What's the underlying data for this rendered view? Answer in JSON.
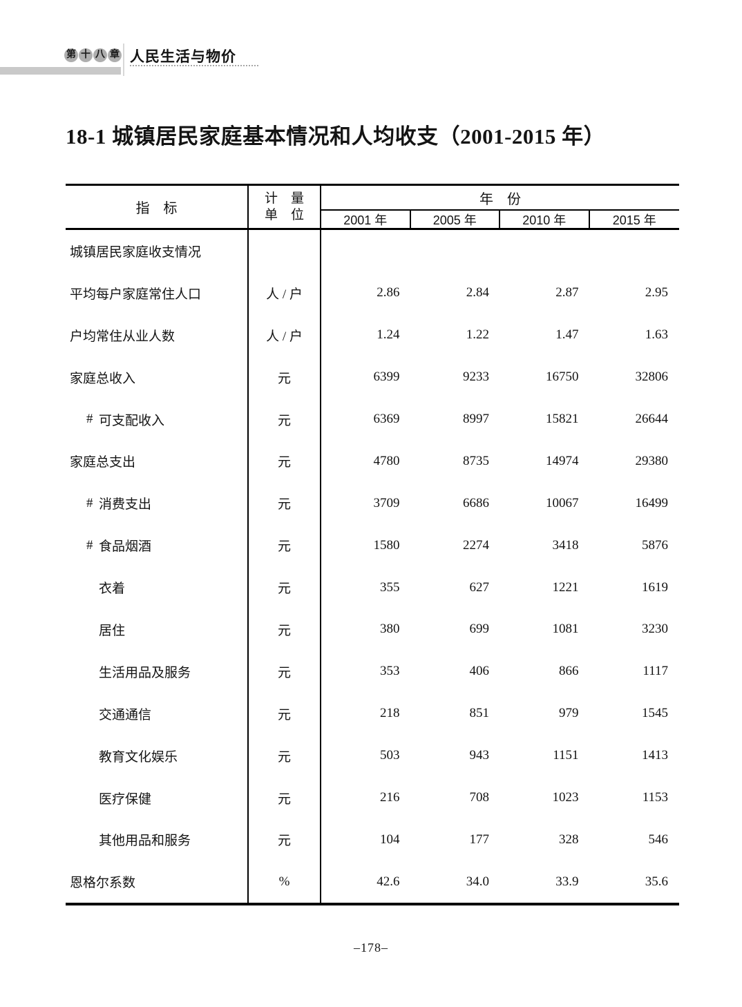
{
  "header": {
    "chapter_badge_chars": [
      "第",
      "十",
      "八",
      "章"
    ],
    "chapter_title": "人民生活与物价"
  },
  "title": "18-1  城镇居民家庭基本情况和人均收支（2001-2015 年）",
  "table": {
    "col_indicator": "指　标",
    "col_unit_line1": "计　量",
    "col_unit_line2": "单　位",
    "col_year_group": "年　份",
    "year_columns": [
      "2001 年",
      "2005 年",
      "2010 年",
      "2015 年"
    ],
    "rows": [
      {
        "hash": "",
        "label": "城镇居民家庭收支情况",
        "indent": 0,
        "unit": "",
        "values": [
          "",
          "",
          "",
          ""
        ]
      },
      {
        "hash": "",
        "label": "平均每户家庭常住人口",
        "indent": 0,
        "unit": "人 / 户",
        "values": [
          "2.86",
          "2.84",
          "2.87",
          "2.95"
        ]
      },
      {
        "hash": "",
        "label": "户均常住从业人数",
        "indent": 0,
        "unit": "人 / 户",
        "values": [
          "1.24",
          "1.22",
          "1.47",
          "1.63"
        ]
      },
      {
        "hash": "",
        "label": "家庭总收入",
        "indent": 0,
        "unit": "元",
        "values": [
          "6399",
          "9233",
          "16750",
          "32806"
        ]
      },
      {
        "hash": "#",
        "label": "可支配收入",
        "indent": 1,
        "unit": "元",
        "values": [
          "6369",
          "8997",
          "15821",
          "26644"
        ]
      },
      {
        "hash": "",
        "label": "家庭总支出",
        "indent": 0,
        "unit": "元",
        "values": [
          "4780",
          "8735",
          "14974",
          "29380"
        ]
      },
      {
        "hash": "#",
        "label": "消费支出",
        "indent": 1,
        "unit": "元",
        "values": [
          "3709",
          "6686",
          "10067",
          "16499"
        ]
      },
      {
        "hash": "#",
        "label": "食品烟酒",
        "indent": 1,
        "unit": "元",
        "values": [
          "1580",
          "2274",
          "3418",
          "5876"
        ]
      },
      {
        "hash": "",
        "label": "衣着",
        "indent": 2,
        "unit": "元",
        "values": [
          "355",
          "627",
          "1221",
          "1619"
        ]
      },
      {
        "hash": "",
        "label": "居住",
        "indent": 2,
        "unit": "元",
        "values": [
          "380",
          "699",
          "1081",
          "3230"
        ]
      },
      {
        "hash": "",
        "label": "生活用品及服务",
        "indent": 2,
        "unit": "元",
        "values": [
          "353",
          "406",
          "866",
          "1117"
        ]
      },
      {
        "hash": "",
        "label": "交通通信",
        "indent": 2,
        "unit": "元",
        "values": [
          "218",
          "851",
          "979",
          "1545"
        ]
      },
      {
        "hash": "",
        "label": "教育文化娱乐",
        "indent": 2,
        "unit": "元",
        "values": [
          "503",
          "943",
          "1151",
          "1413"
        ]
      },
      {
        "hash": "",
        "label": "医疗保健",
        "indent": 2,
        "unit": "元",
        "values": [
          "216",
          "708",
          "1023",
          "1153"
        ]
      },
      {
        "hash": "",
        "label": "其他用品和服务",
        "indent": 2,
        "unit": "元",
        "values": [
          "104",
          "177",
          "328",
          "546"
        ]
      },
      {
        "hash": "",
        "label": "恩格尔系数",
        "indent": 0,
        "unit": "%",
        "values": [
          "42.6",
          "34.0",
          "33.9",
          "35.6"
        ]
      }
    ]
  },
  "footer": {
    "page_number": "–178–"
  },
  "colors": {
    "badge_circle": "#aeaeae",
    "header_bar": "#c9c9c9",
    "header_divider": "#d8d8d8",
    "dotted_underline": "#a6a6a6",
    "table_line": "#000000",
    "text": "#141414",
    "background": "#ffffff"
  }
}
